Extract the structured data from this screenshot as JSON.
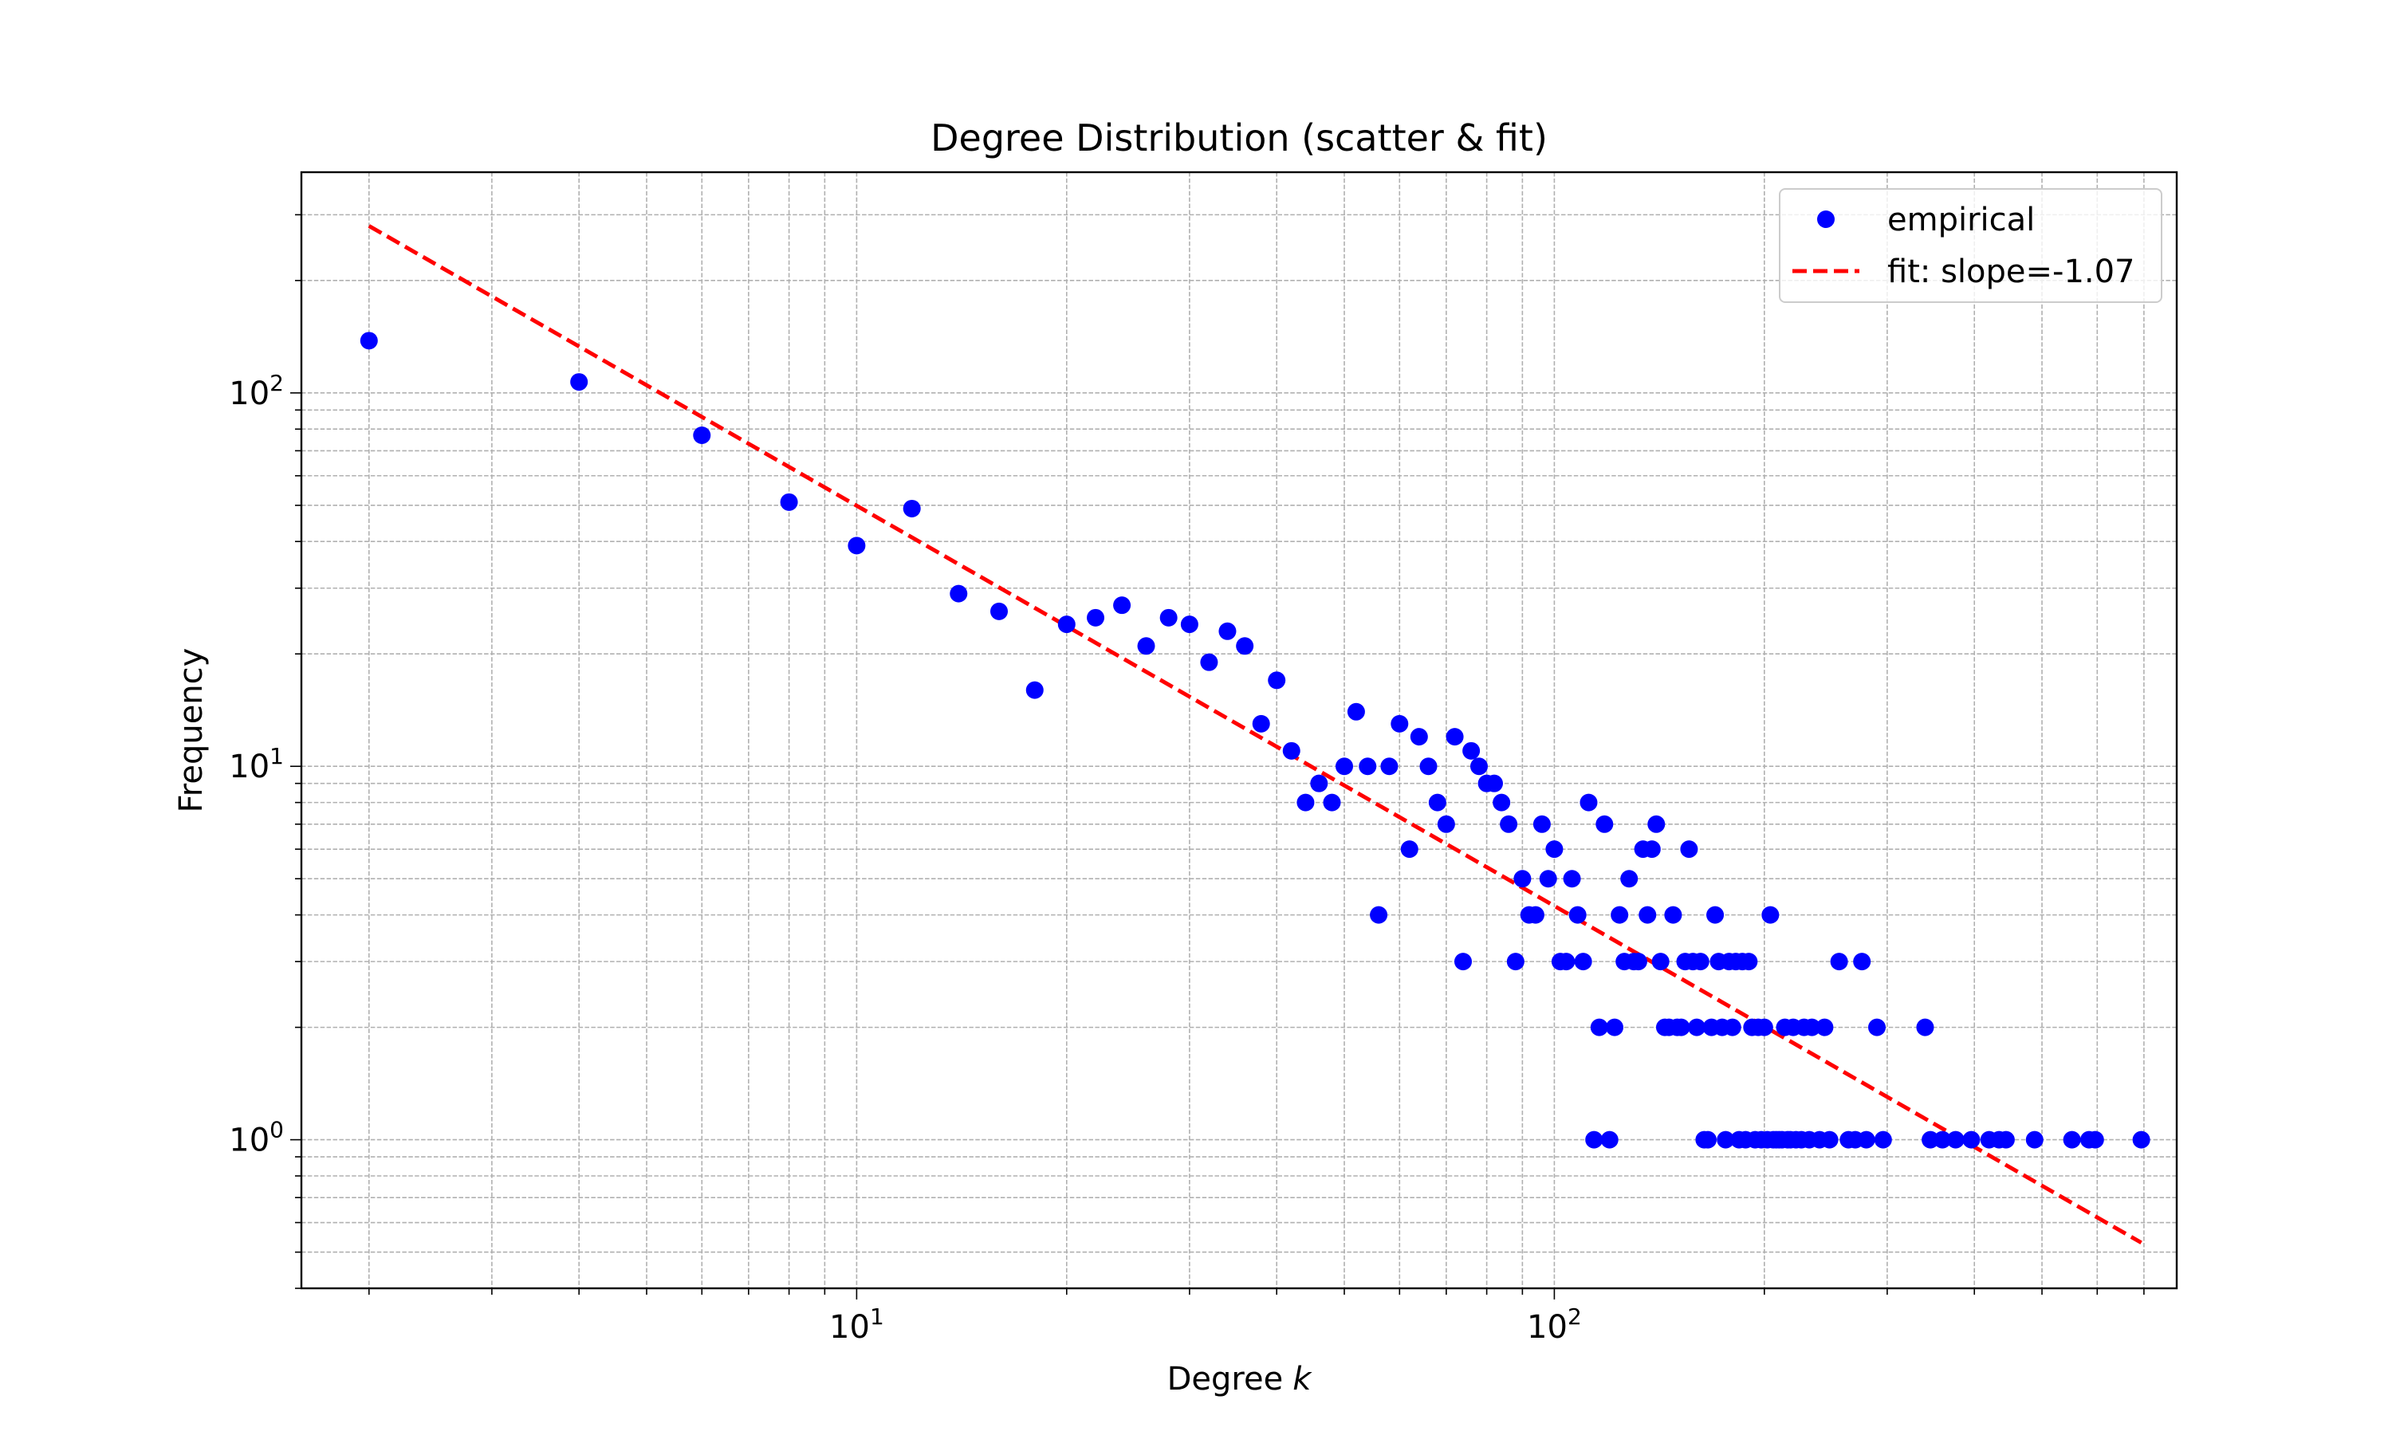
{
  "chart_data": {
    "type": "scatter",
    "title": "Degree Distribution (scatter & fit)",
    "xlabel": "Degree",
    "xlabel_var": "k",
    "ylabel": "Frequency",
    "x_scale": "log",
    "y_scale": "log",
    "xlim": [
      1.6,
      780
    ],
    "ylim": [
      0.4,
      390
    ],
    "x_major_ticks": [
      {
        "value": 10,
        "base": "10",
        "exp": "1"
      },
      {
        "value": 100,
        "base": "10",
        "exp": "2"
      }
    ],
    "y_major_ticks": [
      {
        "value": 1,
        "base": "10",
        "exp": "0"
      },
      {
        "value": 10,
        "base": "10",
        "exp": "1"
      },
      {
        "value": 100,
        "base": "10",
        "exp": "2"
      }
    ],
    "grid": true,
    "grid_which": "both",
    "legend_position": "top-right",
    "colors": {
      "empirical": "#0000ff",
      "fit": "#ff0000",
      "grid": "#b0b0b0"
    },
    "series": [
      {
        "name": "empirical",
        "style": "markers",
        "points": [
          [
            2,
            138
          ],
          [
            4,
            107
          ],
          [
            6,
            77
          ],
          [
            8,
            51
          ],
          [
            10,
            39
          ],
          [
            12,
            49
          ],
          [
            14,
            29
          ],
          [
            16,
            26
          ],
          [
            18,
            16
          ],
          [
            20,
            24
          ],
          [
            22,
            25
          ],
          [
            24,
            27
          ],
          [
            26,
            21
          ],
          [
            28,
            25
          ],
          [
            30,
            24
          ],
          [
            32,
            19
          ],
          [
            34,
            23
          ],
          [
            36,
            21
          ],
          [
            38,
            13
          ],
          [
            40,
            17
          ],
          [
            42,
            11
          ],
          [
            44,
            8
          ],
          [
            46,
            9
          ],
          [
            48,
            8
          ],
          [
            50,
            10
          ],
          [
            52,
            14
          ],
          [
            54,
            10
          ],
          [
            56,
            4
          ],
          [
            58,
            10
          ],
          [
            60,
            13
          ],
          [
            62,
            6
          ],
          [
            64,
            12
          ],
          [
            66,
            10
          ],
          [
            68,
            8
          ],
          [
            70,
            7
          ],
          [
            72,
            12
          ],
          [
            74,
            3
          ],
          [
            76,
            11
          ],
          [
            78,
            10
          ],
          [
            80,
            9
          ],
          [
            82,
            9
          ],
          [
            84,
            8
          ],
          [
            86,
            7
          ],
          [
            88,
            3
          ],
          [
            90,
            5
          ],
          [
            92,
            4
          ],
          [
            94,
            4
          ],
          [
            96,
            7
          ],
          [
            98,
            5
          ],
          [
            100,
            6
          ],
          [
            102,
            3
          ],
          [
            104,
            3
          ],
          [
            106,
            5
          ],
          [
            108,
            4
          ],
          [
            110,
            3
          ],
          [
            112,
            8
          ],
          [
            114,
            1
          ],
          [
            116,
            2
          ],
          [
            118,
            7
          ],
          [
            120,
            1
          ],
          [
            122,
            2
          ],
          [
            124,
            4
          ],
          [
            126,
            3
          ],
          [
            128,
            5
          ],
          [
            130,
            3
          ],
          [
            132,
            3
          ],
          [
            134,
            6
          ],
          [
            136,
            4
          ],
          [
            138,
            6
          ],
          [
            140,
            7
          ],
          [
            142,
            3
          ],
          [
            144,
            2
          ],
          [
            146,
            2
          ],
          [
            148,
            4
          ],
          [
            150,
            2
          ],
          [
            152,
            2
          ],
          [
            154,
            3
          ],
          [
            156,
            6
          ],
          [
            158,
            3
          ],
          [
            160,
            2
          ],
          [
            162,
            3
          ],
          [
            164,
            1
          ],
          [
            166,
            1
          ],
          [
            168,
            2
          ],
          [
            170,
            4
          ],
          [
            172,
            3
          ],
          [
            174,
            2
          ],
          [
            176,
            1
          ],
          [
            178,
            3
          ],
          [
            180,
            2
          ],
          [
            182,
            3
          ],
          [
            184,
            1
          ],
          [
            186,
            3
          ],
          [
            188,
            1
          ],
          [
            190,
            3
          ],
          [
            192,
            2
          ],
          [
            194,
            1
          ],
          [
            196,
            2
          ],
          [
            198,
            1
          ],
          [
            200,
            2
          ],
          [
            202,
            1
          ],
          [
            204,
            4
          ],
          [
            206,
            1
          ],
          [
            208,
            1
          ],
          [
            210,
            1
          ],
          [
            212,
            1
          ],
          [
            214,
            2
          ],
          [
            216,
            1
          ],
          [
            218,
            1
          ],
          [
            220,
            2
          ],
          [
            222,
            1
          ],
          [
            226,
            1
          ],
          [
            228,
            2
          ],
          [
            232,
            1
          ],
          [
            234,
            2
          ],
          [
            240,
            1
          ],
          [
            244,
            2
          ],
          [
            248,
            1
          ],
          [
            256,
            3
          ],
          [
            264,
            1
          ],
          [
            270,
            1
          ],
          [
            276,
            3
          ],
          [
            280,
            1
          ],
          [
            290,
            2
          ],
          [
            296,
            1
          ],
          [
            340,
            2
          ],
          [
            346,
            1
          ],
          [
            360,
            1
          ],
          [
            376,
            1
          ],
          [
            396,
            1
          ],
          [
            420,
            1
          ],
          [
            434,
            1
          ],
          [
            444,
            1
          ],
          [
            488,
            1
          ],
          [
            552,
            1
          ],
          [
            584,
            1
          ],
          [
            596,
            1
          ],
          [
            694,
            1
          ]
        ]
      },
      {
        "name": "fit: slope=-1.07",
        "style": "dashed-line",
        "slope": -1.07,
        "points": [
          [
            2,
            280
          ],
          [
            694,
            0.53
          ]
        ]
      }
    ]
  }
}
